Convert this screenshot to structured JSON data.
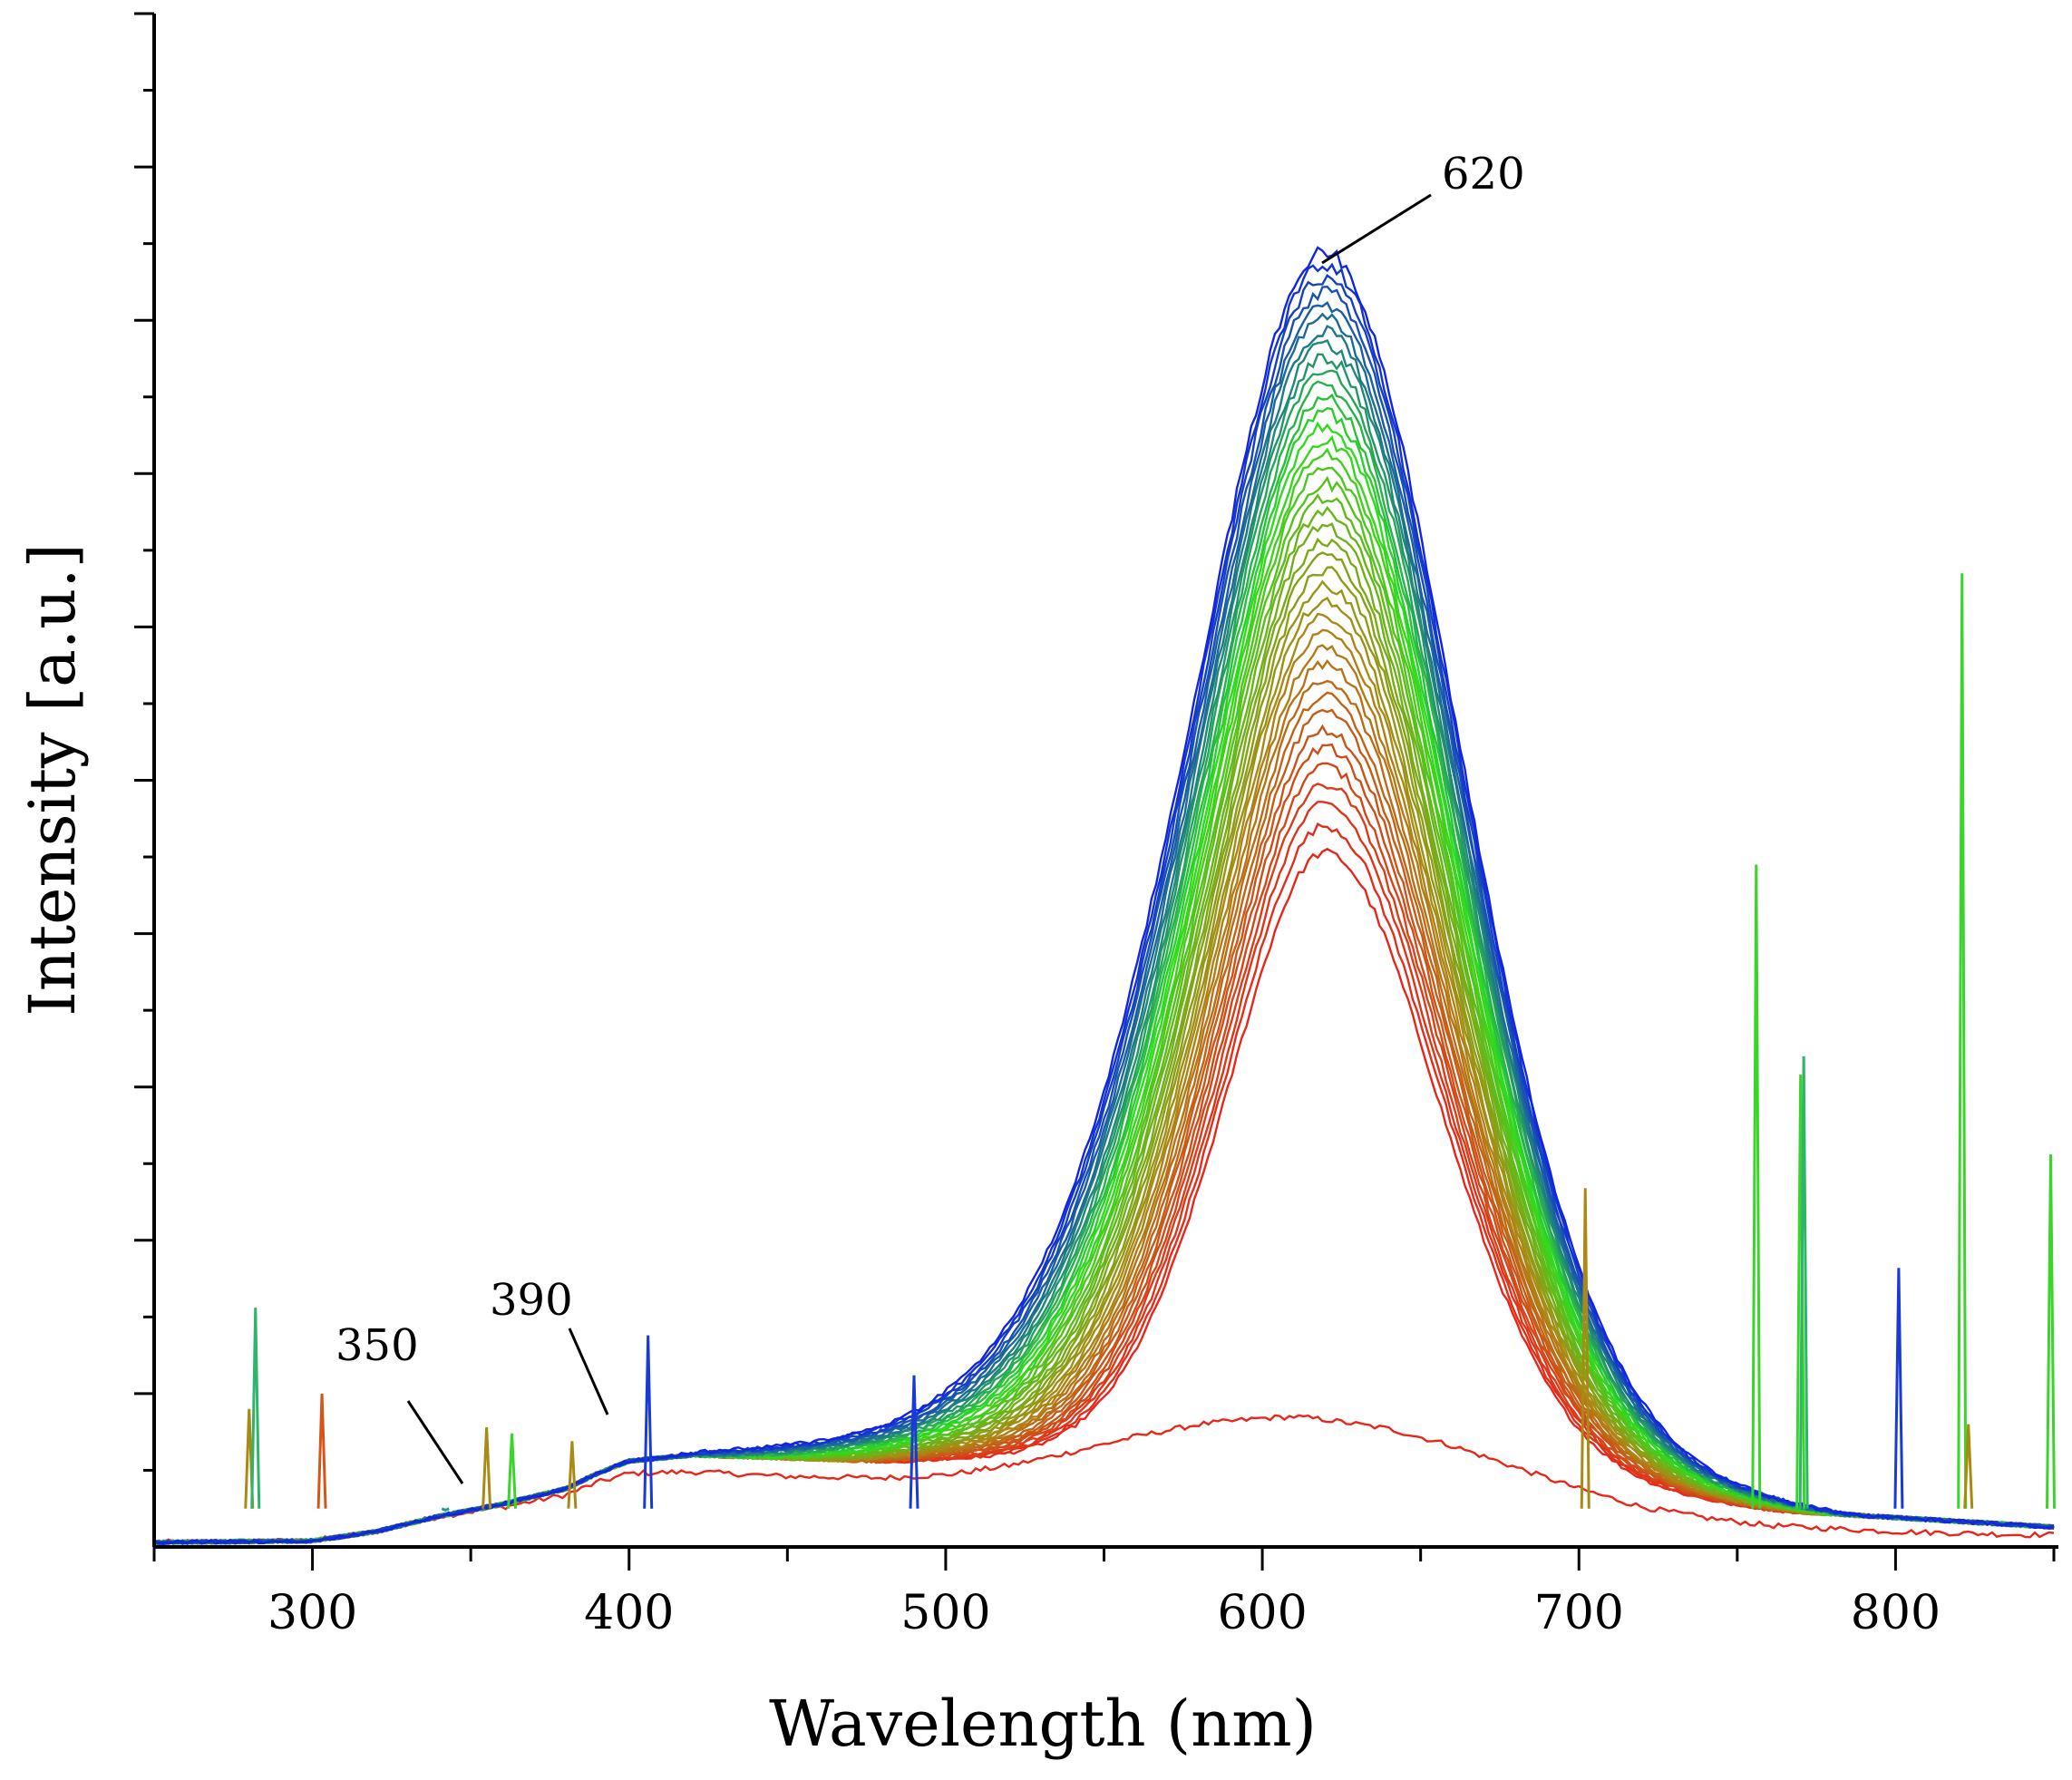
{
  "chart_data": {
    "type": "line",
    "title": "",
    "xlabel": "Wavelength (nm)",
    "ylabel": "Intensity [a.u.]",
    "xlim": [
      250,
      850
    ],
    "ylim": [
      0,
      100
    ],
    "x_ticks": [
      300,
      400,
      500,
      600,
      700,
      800
    ],
    "x_minor_step": 50,
    "y_tick_count": 10,
    "y_tick_labels_shown": false,
    "grid": false,
    "legend": "none",
    "color_gradient": {
      "start": "#e8261a",
      "mid1": "#a98a14",
      "mid2": "#2ddc1e",
      "end": "#1226e0"
    },
    "annotations": [
      {
        "text": "620",
        "x": 620,
        "y": 82
      },
      {
        "text": "390",
        "x": 390,
        "y": 8.4
      },
      {
        "text": "350",
        "x": 350,
        "y": 4.3
      }
    ],
    "baseline_curve": {
      "name": "lowest (red) spectrum",
      "x": [
        250,
        300,
        320,
        340,
        360,
        380,
        390,
        400,
        420,
        450,
        480,
        500,
        520,
        540,
        560,
        580,
        600,
        610,
        620,
        640,
        660,
        680,
        700,
        720,
        740,
        760,
        780,
        800,
        820,
        840,
        850
      ],
      "y": [
        0.3,
        0.4,
        1.0,
        2.0,
        2.6,
        3.4,
        4.2,
        4.8,
        4.9,
        4.6,
        4.5,
        4.7,
        5.3,
        6.2,
        7.2,
        8.0,
        8.4,
        8.5,
        8.3,
        7.7,
        6.6,
        5.2,
        3.8,
        2.6,
        1.9,
        1.4,
        1.2,
        1.0,
        0.9,
        0.8,
        0.8
      ]
    },
    "series_family": {
      "count": 40,
      "peak_x": 620,
      "peak_min": 42,
      "peak_max": 82,
      "gap_after_first": 17,
      "background": {
        "x": [
          250,
          300,
          320,
          340,
          360,
          380,
          390,
          400,
          420,
          450,
          480,
          500,
          850
        ],
        "y": [
          0.3,
          0.4,
          1.0,
          2.0,
          2.8,
          3.8,
          4.8,
          5.6,
          6.0,
          5.8,
          5.6,
          5.6,
          1.3
        ]
      },
      "description": "Family of emission spectra peaking near 620 nm; colors run red (lowest) -> olive -> green -> blue (highest)"
    },
    "spikes": [
      {
        "x": 280,
        "y": 9.0,
        "color": "#a98a14"
      },
      {
        "x": 282,
        "y": 15.6,
        "color": "#2fb56a"
      },
      {
        "x": 303,
        "y": 10.0,
        "color": "#d4561a"
      },
      {
        "x": 342,
        "y": 2.4,
        "color": "#1e9a8c"
      },
      {
        "x": 355,
        "y": 7.8,
        "color": "#a98a14"
      },
      {
        "x": 363,
        "y": 7.4,
        "color": "#3ad42a"
      },
      {
        "x": 382,
        "y": 6.9,
        "color": "#a98a14"
      },
      {
        "x": 406,
        "y": 13.8,
        "color": "#1a3ad8"
      },
      {
        "x": 490,
        "y": 11.2,
        "color": "#1a3ad8"
      },
      {
        "x": 702,
        "y": 23.4,
        "color": "#a98a14"
      },
      {
        "x": 756,
        "y": 44.5,
        "color": "#3ad42a"
      },
      {
        "x": 770,
        "y": 30.8,
        "color": "#3ad42a"
      },
      {
        "x": 771,
        "y": 32.0,
        "color": "#2fb56a"
      },
      {
        "x": 801,
        "y": 18.2,
        "color": "#1a3ad8"
      },
      {
        "x": 821,
        "y": 63.5,
        "color": "#3ad42a"
      },
      {
        "x": 823,
        "y": 8.0,
        "color": "#a98a14"
      },
      {
        "x": 849,
        "y": 25.6,
        "color": "#3ad42a"
      }
    ]
  }
}
